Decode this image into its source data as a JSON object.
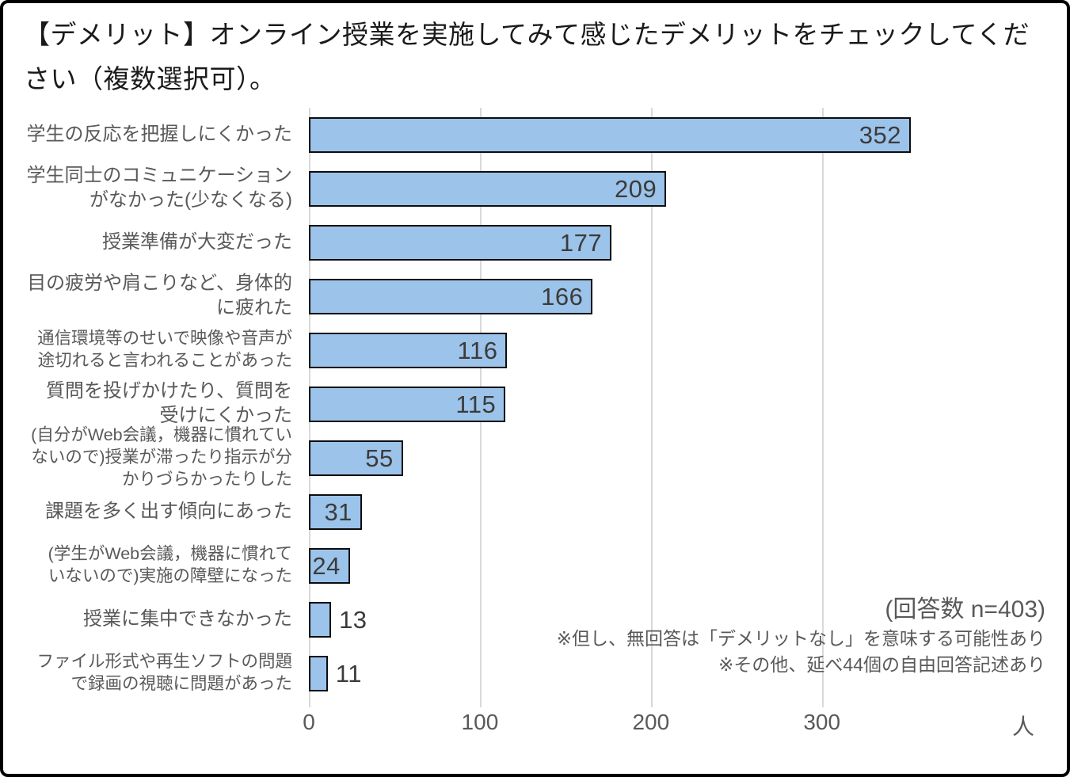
{
  "title": "【デメリット】オンライン授業を実施してみて感じたデメリットをチェックしてください（複数選択可）。",
  "chart_data": {
    "type": "bar",
    "orientation": "horizontal",
    "title": "【デメリット】オンライン授業を実施してみて感じたデメリットをチェックしてください（複数選択可）。",
    "categories": [
      "学生の反応を把握しにくかった",
      "学生同士のコミュニケーション\nがなかった(少なくなる)",
      "授業準備が大変だった",
      "目の疲労や肩こりなど、身体的\nに疲れた",
      "通信環境等のせいで映像や音声が\n途切れると言われることがあった",
      "質問を投げかけたり、質問を\n受けにくかった",
      "(自分がWeb会議，機器に慣れてい\nないので)授業が滞ったり指示が分\nかりづらかったりした",
      "課題を多く出す傾向にあった",
      "(学生がWeb会議，機器に慣れて\nいないので)実施の障壁になった",
      "授業に集中できなかった",
      "ファイル形式や再生ソフトの問題\nで録画の視聴に問題があった"
    ],
    "values": [
      352,
      209,
      177,
      166,
      116,
      115,
      55,
      31,
      24,
      13,
      11
    ],
    "x_ticks": [
      0,
      100,
      200,
      300
    ],
    "x_axis_max": 440,
    "x_unit_label": "人",
    "value_label_position": "inside-end",
    "grid": "vertical-only",
    "legend": "none",
    "annotations": [
      "(回答数 n=403)",
      "※但し、無回答は「デメリットなし」を意味する可能性あり",
      "※その他、延べ44個の自由回答記述あり"
    ]
  },
  "colors": {
    "bar_fill": "#9cc3ea",
    "bar_border": "#0d0d0d",
    "gridline": "#d9d9d9",
    "axis_text": "#595959",
    "category_text": "#595959",
    "value_text": "#3b3b3b",
    "title_text": "#1a1a1a",
    "frame_border": "#000000",
    "background": "#ffffff"
  }
}
